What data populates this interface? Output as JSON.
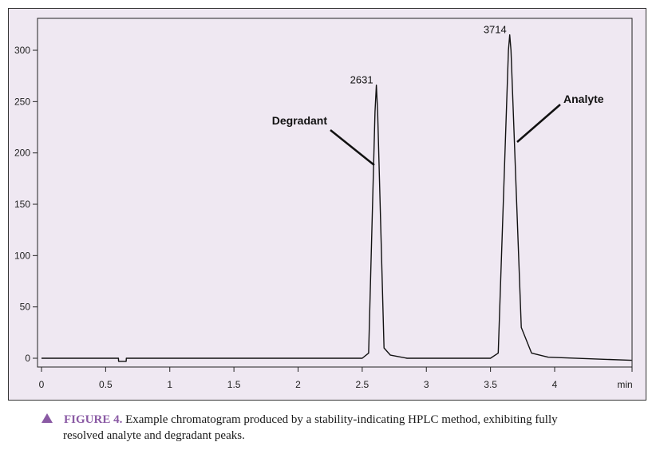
{
  "chart_data": {
    "type": "line",
    "xlabel": "min",
    "ylabel": "",
    "xlim": [
      0,
      4.6
    ],
    "ylim": [
      -10,
      330
    ],
    "xticks": [
      "0",
      "0.5",
      "1",
      "1.5",
      "2",
      "2.5",
      "3",
      "3.5",
      "4"
    ],
    "yticks": [
      "0",
      "50",
      "100",
      "150",
      "200",
      "250",
      "300"
    ],
    "xtick_values": [
      0,
      0.5,
      1,
      1.5,
      2,
      2.5,
      3,
      3.5,
      4
    ],
    "ytick_values": [
      0,
      50,
      100,
      150,
      200,
      250,
      300
    ],
    "grid": false,
    "series": [
      {
        "x": [
          0,
          0.6,
          0.601,
          0.66,
          0.661,
          2.5,
          2.55,
          2.6,
          2.61,
          2.62,
          2.67,
          2.72,
          2.85,
          3.5,
          3.56,
          3.64,
          3.65,
          3.66,
          3.74,
          3.82,
          3.95,
          4.6
        ],
        "y": [
          0,
          0,
          -3,
          -3,
          0,
          0,
          5,
          240,
          266,
          240,
          10,
          3,
          0,
          0,
          5,
          300,
          315,
          300,
          30,
          5,
          1,
          -2
        ]
      }
    ],
    "annotations": [
      {
        "text": "2631",
        "x": 2.61,
        "y": 266
      },
      {
        "text": "3714",
        "x": 3.65,
        "y": 315
      }
    ],
    "series_labels": [
      {
        "text": "Degradant",
        "x": 2.0,
        "y": 230
      },
      {
        "text": "Analyte",
        "x": 4.25,
        "y": 250
      }
    ]
  },
  "caption": {
    "label": "FIGURE 4.",
    "text_line1": " Example chromatogram produced by a stability-indicating HPLC method, exhibiting fully",
    "text_line2": "resolved analyte and degradant peaks."
  },
  "colors": {
    "plot_background": "#efe8f2",
    "line": "#111111",
    "caption_accent": "#8a5aa4"
  }
}
